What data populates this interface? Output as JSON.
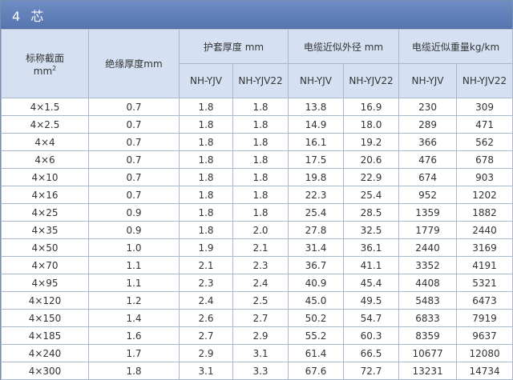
{
  "title": "4 芯",
  "headers": {
    "size": "标称截面",
    "size_unit": "mm",
    "size_unit_sup": "2",
    "insulation": "绝缘厚度mm",
    "sheath": "护套厚度 mm",
    "diameter": "电缆近似外径 mm",
    "weight": "电缆近似重量kg/km",
    "sub": [
      "NH-YJV",
      "NH-YJV22",
      "NH-YJV",
      "NH-YJV22",
      "NH-YJV",
      "NH-YJV22"
    ]
  },
  "rows": [
    [
      "4×1.5",
      "0.7",
      "1.8",
      "1.8",
      "13.8",
      "16.9",
      "230",
      "309"
    ],
    [
      "4×2.5",
      "0.7",
      "1.8",
      "1.8",
      "14.9",
      "18.0",
      "289",
      "471"
    ],
    [
      "4×4",
      "0.7",
      "1.8",
      "1.8",
      "16.1",
      "19.2",
      "366",
      "562"
    ],
    [
      "4×6",
      "0.7",
      "1.8",
      "1.8",
      "17.5",
      "20.6",
      "476",
      "678"
    ],
    [
      "4×10",
      "0.7",
      "1.8",
      "1.8",
      "19.8",
      "22.9",
      "674",
      "903"
    ],
    [
      "4×16",
      "0.7",
      "1.8",
      "1.8",
      "22.3",
      "25.4",
      "952",
      "1202"
    ],
    [
      "4×25",
      "0.9",
      "1.8",
      "1.8",
      "25.4",
      "28.5",
      "1359",
      "1882"
    ],
    [
      "4×35",
      "0.9",
      "1.8",
      "2.0",
      "27.8",
      "32.5",
      "1779",
      "2440"
    ],
    [
      "4×50",
      "1.0",
      "1.9",
      "2.1",
      "31.4",
      "36.1",
      "2440",
      "3169"
    ],
    [
      "4×70",
      "1.1",
      "2.1",
      "2.3",
      "36.7",
      "41.1",
      "3352",
      "4191"
    ],
    [
      "4×95",
      "1.1",
      "2.3",
      "2.4",
      "40.9",
      "45.4",
      "4408",
      "5321"
    ],
    [
      "4×120",
      "1.2",
      "2.4",
      "2.5",
      "45.0",
      "49.5",
      "5483",
      "6473"
    ],
    [
      "4×150",
      "1.4",
      "2.6",
      "2.7",
      "50.2",
      "54.7",
      "6833",
      "7919"
    ],
    [
      "4×185",
      "1.6",
      "2.7",
      "2.9",
      "55.2",
      "60.3",
      "8359",
      "9637"
    ],
    [
      "4×240",
      "1.7",
      "2.9",
      "3.1",
      "61.4",
      "66.5",
      "10677",
      "12080"
    ],
    [
      "4×300",
      "1.8",
      "3.1",
      "3.3",
      "67.6",
      "72.7",
      "13231",
      "14734"
    ]
  ]
}
